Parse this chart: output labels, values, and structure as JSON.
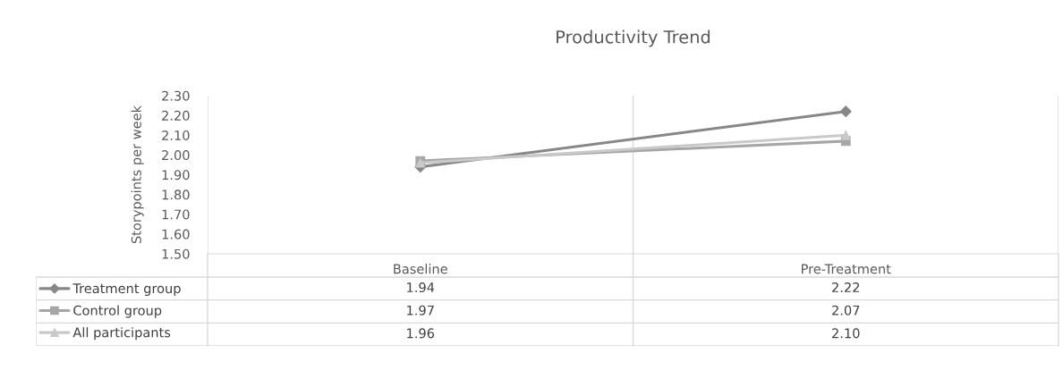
{
  "chart_data": {
    "type": "line",
    "title": "Productivity Trend",
    "ylabel": "Storypoints per week",
    "categories": [
      "Baseline",
      "Pre-Treatment"
    ],
    "series": [
      {
        "name": "Treatment group",
        "color": "#878787",
        "marker": "diamond",
        "values": [
          1.94,
          2.22
        ],
        "value_labels": [
          "1.94",
          "2.22"
        ]
      },
      {
        "name": "Control group",
        "color": "#a6a6a6",
        "marker": "square",
        "values": [
          1.97,
          2.07
        ],
        "value_labels": [
          "1.97",
          "2.07"
        ]
      },
      {
        "name": "All participants",
        "color": "#c9c9c9",
        "marker": "triangle",
        "values": [
          1.96,
          2.1
        ],
        "value_labels": [
          "1.96",
          "2.10"
        ]
      }
    ],
    "ylim": [
      1.5,
      2.3
    ],
    "yticks": [
      {
        "value": 1.5,
        "label": "1.50"
      },
      {
        "value": 1.6,
        "label": "1.60"
      },
      {
        "value": 1.7,
        "label": "1.70"
      },
      {
        "value": 1.8,
        "label": "1.80"
      },
      {
        "value": 1.9,
        "label": "1.90"
      },
      {
        "value": 2.0,
        "label": "2.00"
      },
      {
        "value": 2.1,
        "label": "2.10"
      },
      {
        "value": 2.2,
        "label": "2.20"
      },
      {
        "value": 2.3,
        "label": "2.30"
      }
    ],
    "grid": "x",
    "legend": "bottom"
  }
}
